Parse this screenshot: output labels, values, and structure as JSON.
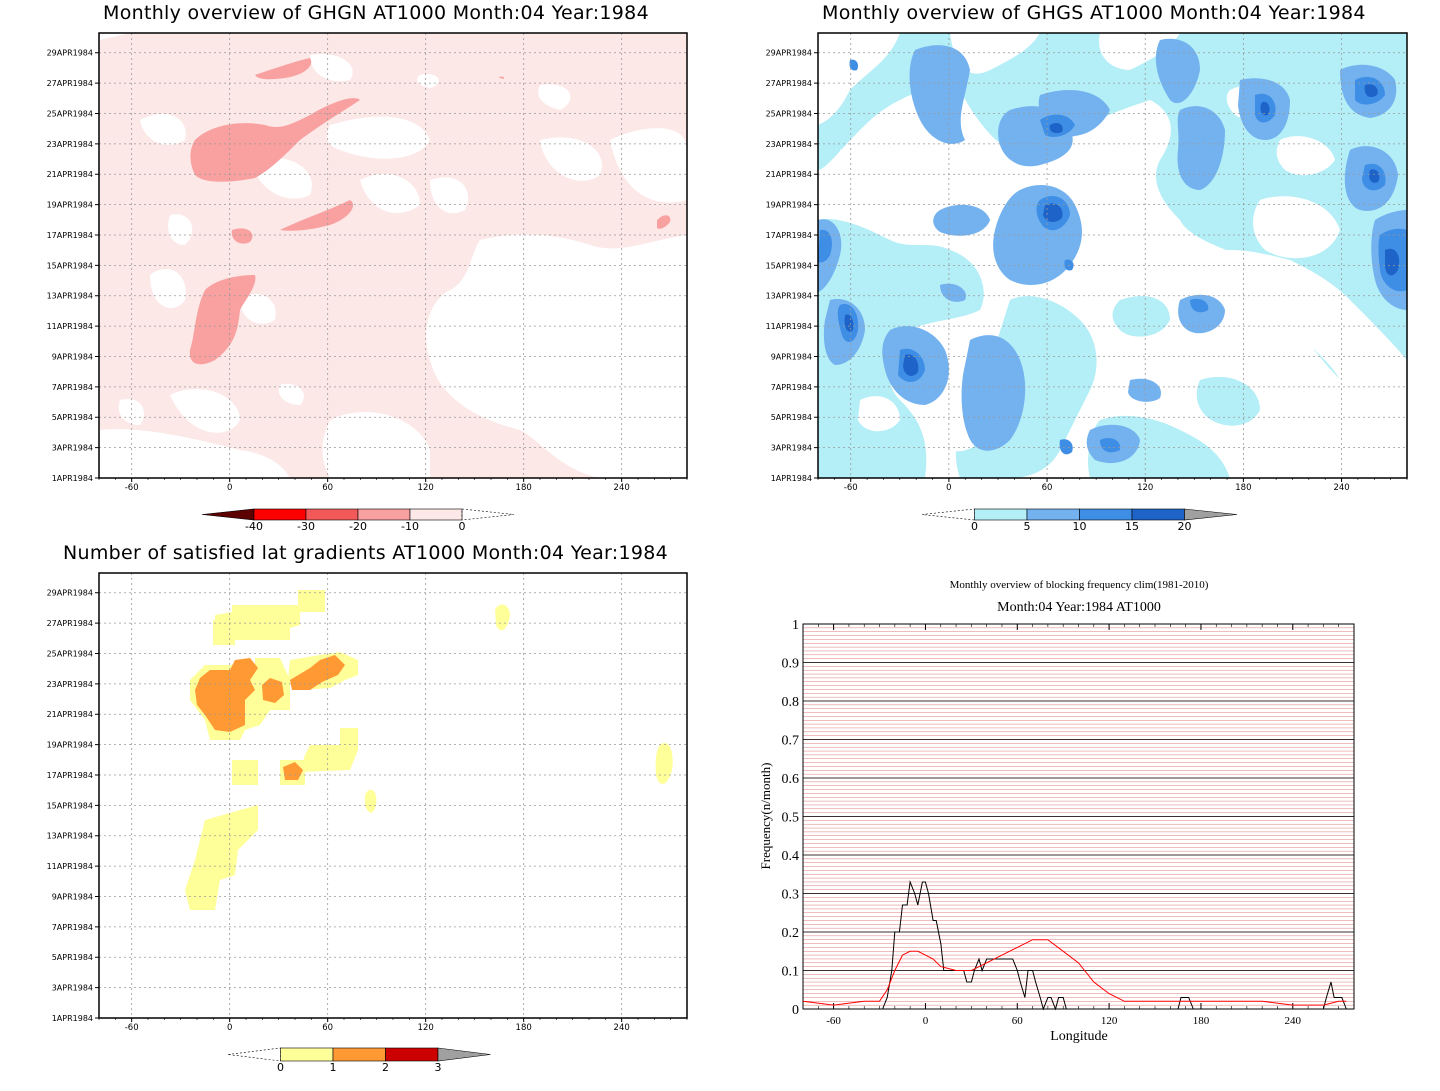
{
  "panels": {
    "ghgn": {
      "title": "Monthly overview of GHGN AT1000 Month:04 Year:1984",
      "colorbar_labels": [
        "-40",
        "-30",
        "-20",
        "-10",
        "0"
      ],
      "colors": [
        "#5c0000",
        "#ff0000",
        "#f25a5a",
        "#f9a0a0",
        "#fde8e8"
      ]
    },
    "ghgs": {
      "title": "Monthly overview of GHGS AT1000 Month:04 Year:1984",
      "colorbar_labels": [
        "0",
        "5",
        "10",
        "15",
        "20"
      ],
      "colors": [
        "#b4eef7",
        "#73b2ef",
        "#3f8ee6",
        "#1e64c8",
        "#a0a0a0"
      ]
    },
    "lat": {
      "title": "Number of satisfied lat gradients AT1000 Month:04 Year:1984",
      "colorbar_labels": [
        "0",
        "1",
        "2",
        "3"
      ],
      "colors": [
        "#ffff99",
        "#ff9933",
        "#cc0000",
        "#a0a0a0"
      ]
    },
    "freq": {
      "title_line1": "Monthly overview of blocking frequency clim(1981-2010)",
      "title_line2": "Month:04 Year:1984  AT1000"
    }
  },
  "hovmoller_axes": {
    "x_ticks": [
      "-60",
      "0",
      "60",
      "120",
      "180",
      "240"
    ],
    "y_ticks": [
      "1APR1984",
      "3APR1984",
      "5APR1984",
      "7APR1984",
      "9APR1984",
      "11APR1984",
      "13APR1984",
      "15APR1984",
      "17APR1984",
      "19APR1984",
      "21APR1984",
      "23APR1984",
      "25APR1984",
      "27APR1984",
      "29APR1984"
    ]
  },
  "chart_data": [
    {
      "type": "heatmap",
      "title": "Monthly overview of GHGN AT1000 Month:04 Year:1984",
      "x_ticks": [
        -60,
        0,
        60,
        120,
        180,
        240
      ],
      "xlim": [
        -80,
        280
      ],
      "y_ticks": [
        "1APR1984",
        "3APR1984",
        "5APR1984",
        "7APR1984",
        "9APR1984",
        "11APR1984",
        "13APR1984",
        "15APR1984",
        "17APR1984",
        "19APR1984",
        "21APR1984",
        "23APR1984",
        "25APR1984",
        "27APR1984",
        "29APR1984"
      ],
      "levels": [
        -40,
        -30,
        -20,
        -10,
        0
      ],
      "colors": [
        "#5c0000",
        "#ff0000",
        "#f25a5a",
        "#f9a0a0",
        "#fde8e8"
      ]
    },
    {
      "type": "heatmap",
      "title": "Monthly overview of GHGS AT1000 Month:04 Year:1984",
      "x_ticks": [
        -60,
        0,
        60,
        120,
        180,
        240
      ],
      "xlim": [
        -80,
        280
      ],
      "y_ticks": [
        "1APR1984",
        "3APR1984",
        "5APR1984",
        "7APR1984",
        "9APR1984",
        "11APR1984",
        "13APR1984",
        "15APR1984",
        "17APR1984",
        "19APR1984",
        "21APR1984",
        "23APR1984",
        "25APR1984",
        "27APR1984",
        "29APR1984"
      ],
      "levels": [
        0,
        5,
        10,
        15,
        20
      ],
      "colors": [
        "#b4eef7",
        "#73b2ef",
        "#3f8ee6",
        "#1e64c8",
        "#a0a0a0"
      ]
    },
    {
      "type": "heatmap",
      "title": "Number of satisfied lat gradients AT1000 Month:04 Year:1984",
      "x_ticks": [
        -60,
        0,
        60,
        120,
        180,
        240
      ],
      "xlim": [
        -80,
        280
      ],
      "y_ticks": [
        "1APR1984",
        "3APR1984",
        "5APR1984",
        "7APR1984",
        "9APR1984",
        "11APR1984",
        "13APR1984",
        "15APR1984",
        "17APR1984",
        "19APR1984",
        "21APR1984",
        "23APR1984",
        "25APR1984",
        "27APR1984",
        "29APR1984"
      ],
      "levels": [
        0,
        1,
        2,
        3
      ],
      "colors": [
        "#ffff99",
        "#ff9933",
        "#cc0000",
        "#a0a0a0"
      ]
    },
    {
      "type": "line",
      "title": "Monthly overview of blocking frequency clim(1981-2010)",
      "subtitle": "Month:04 Year:1984  AT1000",
      "xlabel": "Longitude",
      "ylabel": "Frequency(n/month)",
      "x_ticks": [
        -60,
        0,
        60,
        120,
        180,
        240
      ],
      "y_ticks": [
        0,
        0.1,
        0.2,
        0.3,
        0.4,
        0.5,
        0.6,
        0.7,
        0.8,
        0.9,
        1
      ],
      "xlim": [
        -80,
        280
      ],
      "ylim": [
        0,
        1
      ],
      "series": [
        {
          "color": "#000000",
          "x": [
            -80,
            -28,
            -25,
            -22,
            -20,
            -17,
            -15,
            -12,
            -10,
            -7,
            -5,
            -2,
            0,
            2,
            5,
            7,
            10,
            12,
            15,
            17,
            20,
            25,
            27,
            30,
            32,
            35,
            37,
            40,
            42,
            45,
            50,
            55,
            57,
            60,
            62,
            65,
            67,
            70,
            72,
            75,
            77,
            80,
            82,
            85,
            87,
            90,
            92,
            95,
            165,
            167,
            170,
            172,
            175,
            177,
            180,
            260,
            262,
            265,
            267,
            270,
            272,
            275
          ],
          "y": [
            0,
            0,
            0.03,
            0.1,
            0.2,
            0.2,
            0.27,
            0.27,
            0.33,
            0.3,
            0.27,
            0.33,
            0.33,
            0.3,
            0.23,
            0.23,
            0.17,
            0.1,
            0.1,
            0.1,
            0.1,
            0.1,
            0.07,
            0.07,
            0.1,
            0.13,
            0.1,
            0.13,
            0.13,
            0.13,
            0.13,
            0.13,
            0.13,
            0.1,
            0.07,
            0.03,
            0.1,
            0.1,
            0.07,
            0.03,
            0.0,
            0.03,
            0.03,
            0.0,
            0.03,
            0.03,
            0.0,
            0,
            0,
            0.03,
            0.03,
            0.03,
            0.0,
            0.0,
            0,
            0,
            0.03,
            0.07,
            0.03,
            0.03,
            0.03,
            0.0
          ]
        },
        {
          "color": "#ff0000",
          "x": [
            -80,
            -60,
            -40,
            -30,
            -25,
            -20,
            -15,
            -10,
            -5,
            0,
            5,
            10,
            20,
            30,
            40,
            50,
            60,
            70,
            80,
            90,
            100,
            110,
            120,
            130,
            140,
            160,
            180,
            200,
            220,
            240,
            260,
            270,
            275
          ],
          "y": [
            0.02,
            0.01,
            0.02,
            0.02,
            0.05,
            0.1,
            0.14,
            0.15,
            0.15,
            0.14,
            0.13,
            0.11,
            0.1,
            0.1,
            0.12,
            0.14,
            0.16,
            0.18,
            0.18,
            0.15,
            0.12,
            0.07,
            0.04,
            0.02,
            0.02,
            0.02,
            0.02,
            0.02,
            0.02,
            0.01,
            0.01,
            0.02,
            0.02
          ]
        }
      ]
    }
  ]
}
